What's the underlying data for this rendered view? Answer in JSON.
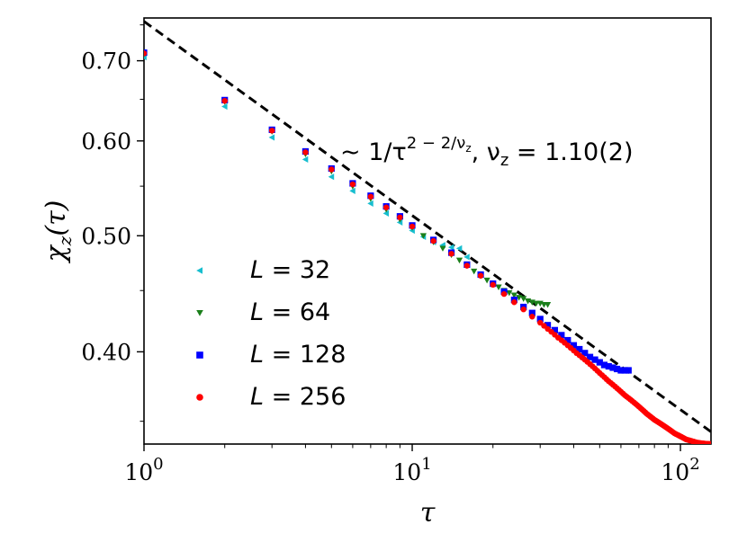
{
  "chart_data": {
    "type": "scatter",
    "xlabel": "τ",
    "ylabel": "χz(τ)",
    "xscale": "log",
    "yscale": "log",
    "xlim": [
      1,
      130
    ],
    "ylim": [
      0.335,
      0.76
    ],
    "x_ticks": [
      {
        "value": 1,
        "base": "10",
        "exp": "0"
      },
      {
        "value": 10,
        "base": "10",
        "exp": "1"
      },
      {
        "value": 100,
        "base": "10",
        "exp": "2"
      }
    ],
    "y_ticks": [
      {
        "value": 0.4,
        "label": "0.40"
      },
      {
        "value": 0.5,
        "label": "0.50"
      },
      {
        "value": 0.6,
        "label": "0.60"
      },
      {
        "value": 0.7,
        "label": "0.70"
      }
    ],
    "annotation": {
      "prefix": "~ 1/τ",
      "exponent": "2 − 2/ν",
      "exponent_sub": "z",
      "suffix": ", ν",
      "suffix_sub": "z",
      "value": " = 1.10(2)"
    },
    "fit_line": {
      "style": "dashed",
      "color": "#000000",
      "points": [
        [
          1,
          0.755
        ],
        [
          130,
          0.343
        ]
      ]
    },
    "legend_position": "lower-left",
    "series": [
      {
        "name": "L = 32",
        "name_italic": "L",
        "name_rest": " = 32",
        "color": "#17becf",
        "marker": "triangle-left",
        "x": [
          1,
          2,
          3,
          4,
          5,
          6,
          7,
          8,
          9,
          10,
          11,
          12,
          13,
          14,
          15,
          16
        ],
        "y": [
          0.705,
          0.641,
          0.604,
          0.579,
          0.56,
          0.545,
          0.532,
          0.522,
          0.513,
          0.505,
          0.499,
          0.494,
          0.491,
          0.489,
          0.488,
          0.48
        ]
      },
      {
        "name": "L = 64",
        "name_italic": "L",
        "name_rest": " = 64",
        "color": "#1a7f1a",
        "marker": "triangle-down",
        "x": [
          1,
          2,
          3,
          4,
          5,
          6,
          7,
          8,
          9,
          10,
          11,
          12,
          13,
          14,
          15,
          16,
          17,
          18,
          19,
          20,
          21,
          22,
          23,
          24,
          25,
          26,
          27,
          28,
          29,
          30,
          31,
          32
        ],
        "y": [
          0.709,
          0.647,
          0.611,
          0.585,
          0.566,
          0.55,
          0.537,
          0.526,
          0.516,
          0.508,
          0.5,
          0.494,
          0.488,
          0.482,
          0.477,
          0.472,
          0.467,
          0.463,
          0.459,
          0.456,
          0.453,
          0.45,
          0.448,
          0.446,
          0.444,
          0.443,
          0.441,
          0.44,
          0.439,
          0.439,
          0.438,
          0.438
        ]
      },
      {
        "name": "L = 128",
        "name_italic": "L",
        "name_rest": " = 128",
        "color": "#0000ff",
        "marker": "square",
        "x": [
          1,
          2,
          3,
          4,
          5,
          6,
          7,
          8,
          9,
          10,
          12,
          14,
          16,
          18,
          20,
          22,
          24,
          26,
          28,
          30,
          32,
          34,
          36,
          38,
          40,
          42,
          44,
          46,
          48,
          50,
          52,
          54,
          56,
          58,
          60,
          62,
          64
        ],
        "y": [
          0.711,
          0.649,
          0.613,
          0.588,
          0.569,
          0.553,
          0.54,
          0.529,
          0.519,
          0.51,
          0.496,
          0.484,
          0.473,
          0.464,
          0.456,
          0.449,
          0.442,
          0.436,
          0.431,
          0.426,
          0.421,
          0.417,
          0.413,
          0.409,
          0.405,
          0.402,
          0.399,
          0.396,
          0.394,
          0.392,
          0.39,
          0.389,
          0.388,
          0.387,
          0.386,
          0.386,
          0.386
        ]
      },
      {
        "name": "L = 256",
        "name_italic": "L",
        "name_rest": " = 256",
        "color": "#ff0000",
        "marker": "circle",
        "x": [
          1,
          2,
          3,
          4,
          5,
          6,
          7,
          8,
          9,
          10,
          12,
          14,
          16,
          18,
          20,
          22,
          24,
          26,
          28,
          30,
          32,
          35,
          38,
          41,
          44,
          47,
          50,
          54,
          58,
          62,
          66,
          70,
          75,
          80,
          85,
          90,
          95,
          100,
          105,
          110,
          115,
          120,
          125,
          130
        ],
        "y": [
          0.71,
          0.648,
          0.612,
          0.587,
          0.568,
          0.552,
          0.539,
          0.528,
          0.518,
          0.509,
          0.495,
          0.483,
          0.472,
          0.463,
          0.455,
          0.447,
          0.44,
          0.434,
          0.428,
          0.423,
          0.418,
          0.411,
          0.405,
          0.399,
          0.394,
          0.389,
          0.384,
          0.378,
          0.373,
          0.368,
          0.364,
          0.36,
          0.355,
          0.351,
          0.348,
          0.345,
          0.342,
          0.34,
          0.338,
          0.337,
          0.336,
          0.3355,
          0.3352,
          0.335
        ]
      }
    ]
  }
}
